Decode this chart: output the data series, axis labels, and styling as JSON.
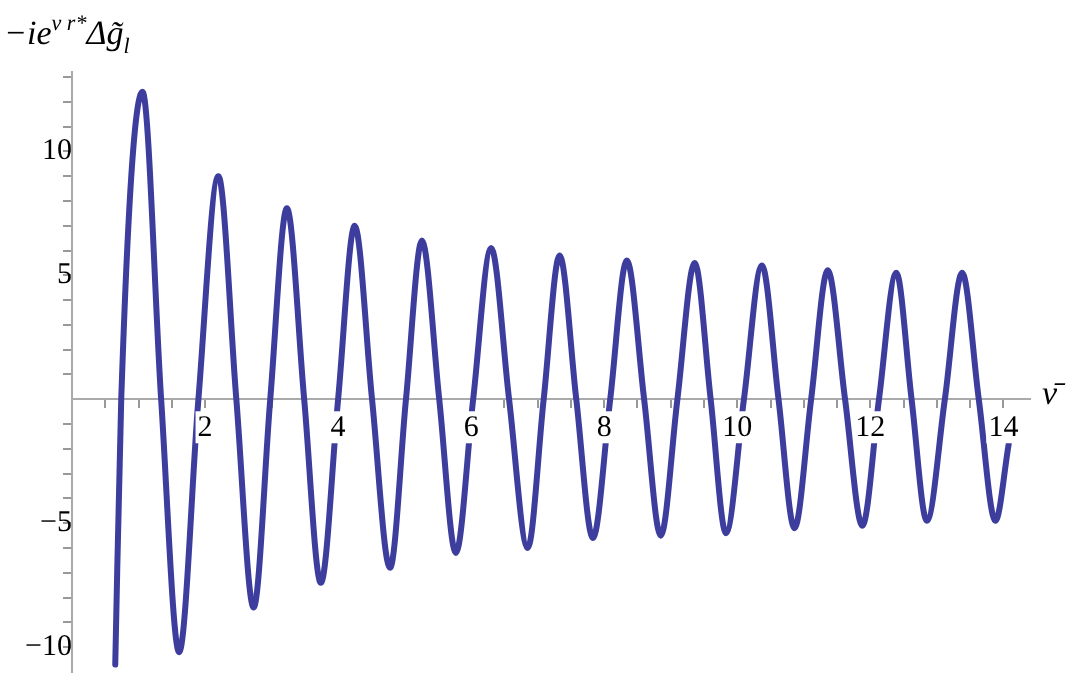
{
  "chart_data": {
    "type": "line",
    "xlabel": "ν̄",
    "ylabel": "−ie$^{ν r*}$Δg̃$_{l}$",
    "x": [
      0.65,
      0.74,
      1.06,
      1.34,
      1.61,
      1.9,
      2.2,
      2.47,
      2.73,
      2.98,
      3.23,
      3.49,
      3.74,
      4.0,
      4.25,
      4.51,
      4.78,
      5.02,
      5.26,
      5.52,
      5.77,
      6.03,
      6.3,
      6.57,
      6.85,
      7.09,
      7.33,
      7.58,
      7.83,
      8.09,
      8.34,
      8.6,
      8.85,
      9.1,
      9.36,
      9.6,
      9.83,
      10.1,
      10.37,
      10.62,
      10.86,
      11.11,
      11.36,
      11.62,
      11.88,
      12.13,
      12.39,
      12.62,
      12.85,
      13.12,
      13.38,
      13.63,
      13.88,
      14.08
    ],
    "series": [
      {
        "color": "#3d3d9e",
        "values": [
          -10.7,
          0,
          12.4,
          0,
          -10.2,
          0,
          9.0,
          0,
          -8.4,
          0,
          7.7,
          0,
          -7.4,
          0,
          7.0,
          0,
          -6.8,
          0,
          6.4,
          0,
          -6.2,
          0,
          6.1,
          0,
          -6.0,
          0,
          5.8,
          0,
          -5.6,
          0,
          5.6,
          0,
          -5.5,
          0,
          5.5,
          0,
          -5.4,
          0,
          5.4,
          0,
          -5.2,
          0,
          5.2,
          0,
          -5.1,
          0,
          5.1,
          0,
          -4.9,
          0,
          5.1,
          0,
          -4.9,
          -1.8
        ]
      }
    ],
    "xlim": [
      0,
      14.4
    ],
    "ylim": [
      -11,
      13.2
    ],
    "xticks": [
      {
        "value": 0.5,
        "label": null
      },
      {
        "value": 1,
        "label": null
      },
      {
        "value": 1.5,
        "label": null
      },
      2,
      {
        "value": 2.5,
        "label": null
      },
      {
        "value": 3,
        "label": null
      },
      {
        "value": 3.5,
        "label": null
      },
      4,
      {
        "value": 4.5,
        "label": null
      },
      {
        "value": 5,
        "label": null
      },
      {
        "value": 5.5,
        "label": null
      },
      6,
      {
        "value": 6.5,
        "label": null
      },
      {
        "value": 7,
        "label": null
      },
      {
        "value": 7.5,
        "label": null
      },
      8,
      {
        "value": 8.5,
        "label": null
      },
      {
        "value": 9,
        "label": null
      },
      {
        "value": 9.5,
        "label": null
      },
      10,
      {
        "value": 10.5,
        "label": null
      },
      {
        "value": 11,
        "label": null
      },
      {
        "value": 11.5,
        "label": null
      },
      12,
      {
        "value": 12.5,
        "label": null
      },
      {
        "value": 13,
        "label": null
      },
      {
        "value": 13.5,
        "label": null
      },
      14
    ],
    "yticks": [
      -10,
      {
        "value": -9,
        "label": null
      },
      {
        "value": -8,
        "label": null
      },
      {
        "value": -7,
        "label": null
      },
      {
        "value": -6,
        "label": null
      },
      -5,
      {
        "value": -4,
        "label": null
      },
      {
        "value": -3,
        "label": null
      },
      {
        "value": -2,
        "label": null
      },
      {
        "value": -1,
        "label": null
      },
      {
        "value": 1,
        "label": null
      },
      {
        "value": 2,
        "label": null
      },
      {
        "value": 3,
        "label": null
      },
      {
        "value": 4,
        "label": null
      },
      5,
      {
        "value": 6,
        "label": null
      },
      {
        "value": 7,
        "label": null
      },
      {
        "value": 8,
        "label": null
      },
      {
        "value": 9,
        "label": null
      },
      10,
      {
        "value": 11,
        "label": null
      },
      {
        "value": 12,
        "label": null
      },
      {
        "value": 13,
        "label": null
      }
    ],
    "grid": false,
    "legend": false,
    "marker": "none",
    "line_style": "solid"
  }
}
